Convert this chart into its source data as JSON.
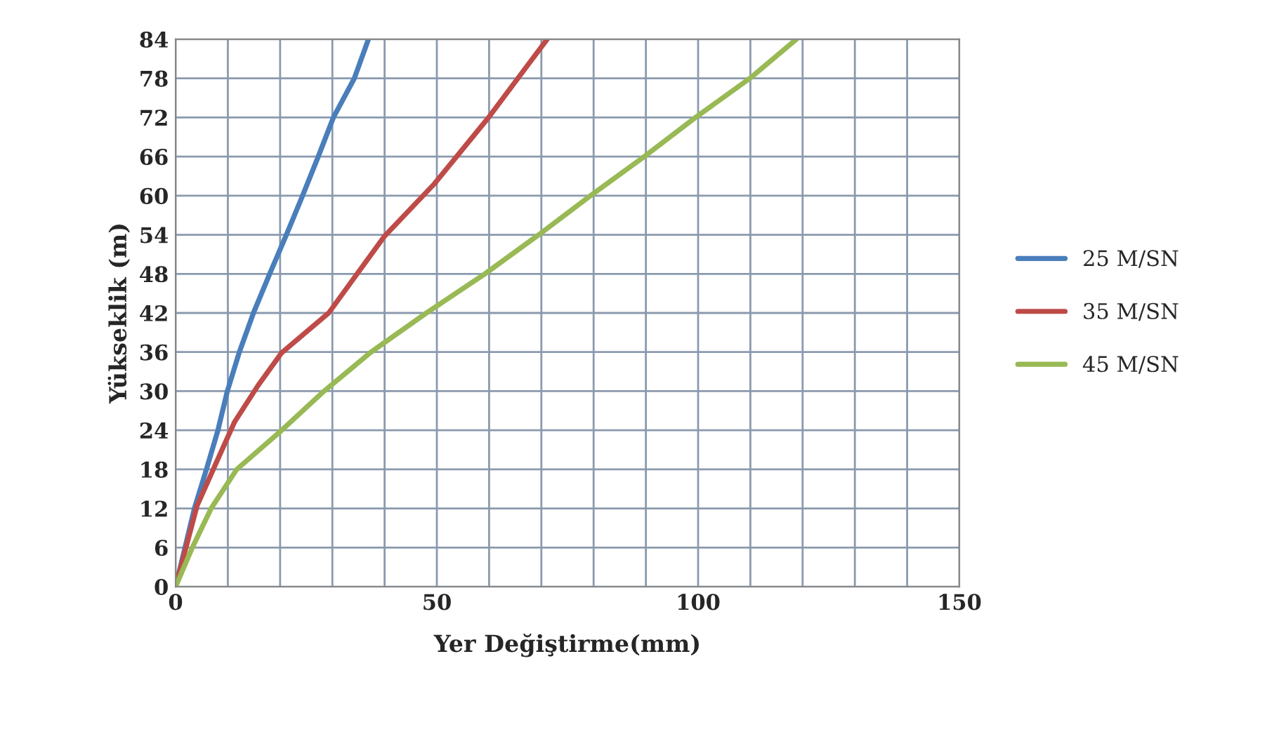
{
  "chart_data": {
    "type": "line",
    "xlabel": "Yer Değiştirme(mm)",
    "ylabel": "Yükseklik (m)",
    "xlim": [
      0,
      150
    ],
    "xticks": [
      0,
      {
        "value": 10,
        "label": null
      },
      {
        "value": 20,
        "label": null
      },
      {
        "value": 30,
        "label": null
      },
      {
        "value": 40,
        "label": null
      },
      50,
      {
        "value": 60,
        "label": null
      },
      {
        "value": 70,
        "label": null
      },
      {
        "value": 80,
        "label": null
      },
      {
        "value": 90,
        "label": null
      },
      100,
      {
        "value": 110,
        "label": null
      },
      {
        "value": 120,
        "label": null
      },
      {
        "value": 130,
        "label": null
      },
      {
        "value": 140,
        "label": null
      },
      150
    ],
    "ylim": [
      0,
      84
    ],
    "yticks": [
      0,
      6,
      12,
      18,
      24,
      30,
      36,
      42,
      48,
      54,
      60,
      66,
      72,
      78,
      84
    ],
    "grid": true,
    "legend": "right",
    "marker": "none",
    "line_style": "solid",
    "series": [
      {
        "name": "25 M/SN",
        "color": "#4a7ebb",
        "x": [
          0,
          1.8,
          3.6,
          5.9,
          8.1,
          9.9,
          12.2,
          14.9,
          18.0,
          21.2,
          24.3,
          27.3,
          30.2,
          34.2,
          36.9
        ],
        "values": [
          0,
          6,
          12,
          18,
          24,
          30,
          36,
          42,
          48,
          54,
          60,
          66,
          72,
          78,
          84
        ]
      },
      {
        "name": "35 M/SN",
        "color": "#be4b48",
        "x": [
          0,
          4.1,
          8.1,
          11.3,
          15.8,
          20.3,
          29.3,
          40.0,
          49.5,
          59.9,
          71.1
        ],
        "values": [
          0,
          12.4,
          19.6,
          25.3,
          30.9,
          35.9,
          42,
          53.8,
          61.8,
          72,
          84
        ]
      },
      {
        "name": "45 M/SN",
        "color": "#98b954",
        "x": [
          0,
          3.2,
          6.8,
          11.7,
          20.3,
          28.4,
          37.4,
          48,
          59.2,
          69.5,
          79.4,
          89.7,
          99.5,
          109.9,
          118.8
        ],
        "values": [
          0,
          6,
          12,
          18,
          24,
          30,
          36,
          42,
          48,
          54,
          60,
          66,
          72,
          78,
          84
        ]
      }
    ]
  }
}
